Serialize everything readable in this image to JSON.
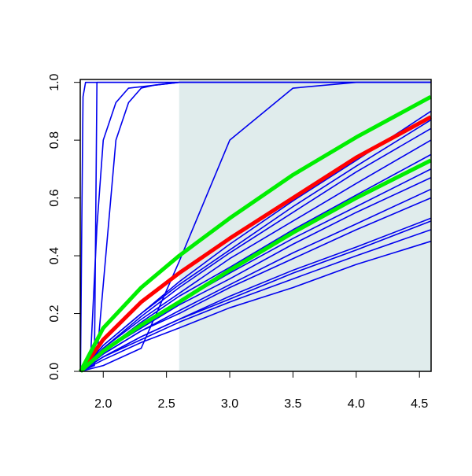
{
  "chart_data": {
    "type": "line",
    "x": [
      1.82,
      2.0,
      2.3,
      2.6,
      3.0,
      3.5,
      4.0,
      4.59
    ],
    "series": [
      {
        "color": "#0000ee",
        "x": [
          1.82,
          1.83,
          1.84,
          1.86,
          4.59
        ],
        "values": [
          0,
          0.5,
          0.95,
          1,
          1
        ]
      },
      {
        "color": "#0000ee",
        "x": [
          1.82,
          1.93,
          1.94,
          1.95,
          4.59
        ],
        "values": [
          0,
          0.02,
          0.5,
          1,
          1
        ]
      },
      {
        "color": "#0000ee",
        "x": [
          1.82,
          1.9,
          1.95,
          2.0,
          2.1,
          2.2,
          2.6,
          4.59
        ],
        "values": [
          0,
          0.05,
          0.5,
          0.8,
          0.93,
          0.98,
          1,
          1
        ]
      },
      {
        "color": "#0000ee",
        "x": [
          1.82,
          1.95,
          2.0,
          2.1,
          2.2,
          2.3,
          2.4,
          2.6,
          4.59
        ],
        "values": [
          0,
          0.05,
          0.3,
          0.8,
          0.93,
          0.98,
          0.99,
          1,
          1
        ]
      },
      {
        "color": "#0000ee",
        "values": [
          0,
          0.02,
          0.08,
          0.38,
          0.8,
          0.98,
          1,
          1
        ]
      },
      {
        "color": "#0000ee",
        "values": [
          0,
          0.04,
          0.1,
          0.15,
          0.22,
          0.29,
          0.37,
          0.45
        ]
      },
      {
        "color": "#0000ee",
        "values": [
          0,
          0.05,
          0.11,
          0.17,
          0.24,
          0.32,
          0.4,
          0.49
        ]
      },
      {
        "color": "#0000ee",
        "values": [
          0,
          0.05,
          0.12,
          0.18,
          0.25,
          0.34,
          0.42,
          0.52
        ]
      },
      {
        "color": "#0000ee",
        "values": [
          0,
          0.05,
          0.12,
          0.18,
          0.26,
          0.35,
          0.43,
          0.53
        ]
      },
      {
        "color": "#0000ee",
        "values": [
          0,
          0.06,
          0.14,
          0.2,
          0.29,
          0.39,
          0.49,
          0.6
        ]
      },
      {
        "color": "#0000ee",
        "values": [
          0,
          0.06,
          0.14,
          0.21,
          0.3,
          0.41,
          0.51,
          0.63
        ]
      },
      {
        "color": "#0000ee",
        "values": [
          0,
          0.07,
          0.15,
          0.23,
          0.32,
          0.44,
          0.55,
          0.67
        ]
      },
      {
        "color": "#0000ee",
        "values": [
          0,
          0.07,
          0.16,
          0.24,
          0.34,
          0.46,
          0.57,
          0.7
        ]
      },
      {
        "color": "#0000ee",
        "values": [
          0,
          0.07,
          0.17,
          0.26,
          0.36,
          0.49,
          0.61,
          0.75
        ]
      },
      {
        "color": "#0000ee",
        "values": [
          0,
          0.08,
          0.18,
          0.27,
          0.39,
          0.52,
          0.65,
          0.8
        ]
      },
      {
        "color": "#0000ee",
        "values": [
          0,
          0.08,
          0.19,
          0.29,
          0.41,
          0.55,
          0.69,
          0.84
        ]
      },
      {
        "color": "#0000ee",
        "values": [
          0,
          0.09,
          0.2,
          0.3,
          0.42,
          0.57,
          0.71,
          0.87
        ]
      },
      {
        "color": "#0000ee",
        "values": [
          0,
          0.09,
          0.2,
          0.31,
          0.44,
          0.59,
          0.73,
          0.9
        ]
      },
      {
        "color": "#ff0000",
        "width": 5,
        "values": [
          0,
          0.11,
          0.24,
          0.34,
          0.46,
          0.6,
          0.74,
          0.88
        ]
      },
      {
        "color": "#00ee00",
        "width": 5,
        "values": [
          0,
          0.15,
          0.29,
          0.4,
          0.53,
          0.68,
          0.81,
          0.95
        ]
      },
      {
        "color": "#00ee00",
        "width": 5,
        "values": [
          0,
          0.07,
          0.16,
          0.24,
          0.35,
          0.48,
          0.6,
          0.73
        ]
      }
    ],
    "shaded_region": {
      "xlim": [
        2.6,
        4.592
      ],
      "color": "#e0ecec"
    },
    "xlim": [
      1.818,
      4.592
    ],
    "ylim": [
      0,
      1.01
    ],
    "xticks": [
      {
        "value": 2,
        "label": "2.0"
      },
      2.5,
      {
        "value": 3,
        "label": "3.0"
      },
      3.5,
      {
        "value": 4,
        "label": "4.0"
      },
      4.5
    ],
    "yticks": [
      {
        "value": 0,
        "label": "0.0"
      },
      0.2,
      0.4,
      0.6,
      0.8,
      {
        "value": 1,
        "label": "1.0"
      }
    ]
  }
}
